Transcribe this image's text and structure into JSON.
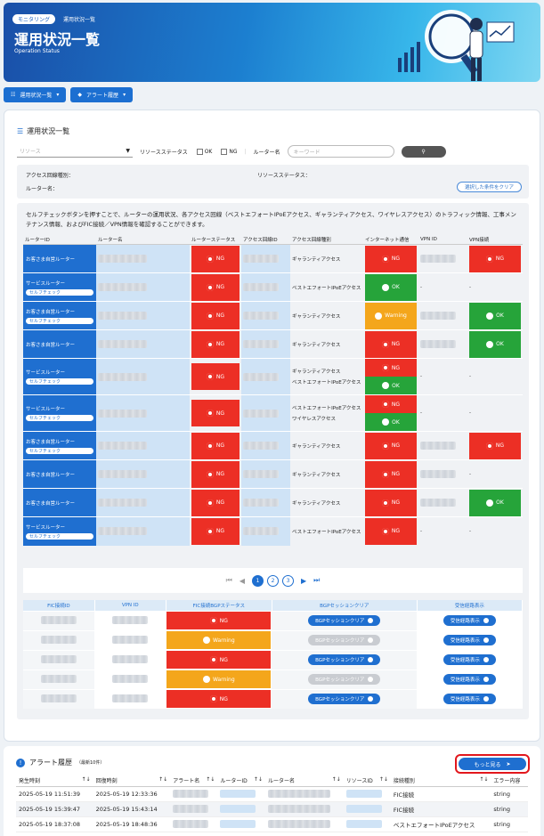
{
  "breadcrumb": [
    "モニタリング",
    "運用状況一覧"
  ],
  "page": {
    "title": "運用状況一覧",
    "subtitle": "Operation Status"
  },
  "nav": {
    "btn1": "運用状況一覧",
    "btn2": "アラート履歴"
  },
  "section": {
    "title": "運用状況一覧"
  },
  "filter": {
    "resource_placeholder": "リソース",
    "resource_status_label": "リソースステータス",
    "ok_label": "OK",
    "ng_label": "NG",
    "router_name_label": "ルーター名",
    "keyword_placeholder": "キーワード"
  },
  "conditions": {
    "access_type_label": "アクセス回線種別：",
    "router_name_label": "ルーター名：",
    "resource_status_label": "リソースステータス：",
    "clear_button": "選択した条件をクリア"
  },
  "description": "セルフチェックボタンを押すことで、ルーターの運用状況、各アクセス回線（ベストエフォートIPoEアクセス、ギャランティアクセス、ワイヤレスアクセス）のトラフィック情報、工事メンテナンス情報、およびFIC接続／VPN情報を確認することができます。",
  "table": {
    "headers": [
      "ルーターID",
      "ルーター名",
      "ルーターステータス",
      "アクセス回線ID",
      "アクセス回線種別",
      "インターネット通信",
      "VPN ID",
      "VPN接続"
    ],
    "self_check_label": "セルフチェック",
    "rows": [
      {
        "name": "お客さま自営ルーター",
        "self": false,
        "status": "NG",
        "lines": [
          {
            "type": "ギャランティアクセス",
            "inet": "NG"
          }
        ],
        "vpn": "NG",
        "vpnid": true
      },
      {
        "name": "サービスルーター",
        "self": true,
        "status": "NG",
        "lines": [
          {
            "type": "ベストエフォートIPoEアクセス",
            "inet": "OK"
          }
        ],
        "vpn": "-",
        "vpnid": false
      },
      {
        "name": "お客さま自営ルーター",
        "self": true,
        "status": "NG",
        "lines": [
          {
            "type": "ギャランティアクセス",
            "inet": "Warning"
          }
        ],
        "vpn": "OK",
        "vpnid": true
      },
      {
        "name": "お客さま自営ルーター",
        "self": false,
        "status": "NG",
        "lines": [
          {
            "type": "ギャランティアクセス",
            "inet": "NG"
          }
        ],
        "vpn": "OK",
        "vpnid": true
      },
      {
        "name": "サービスルーター",
        "self": true,
        "status": "NG",
        "lines": [
          {
            "type": "ギャランティアクセス",
            "inet": "NG"
          },
          {
            "type": "ベストエフォートIPoEアクセス",
            "inet": "OK"
          }
        ],
        "vpn": "-",
        "vpnid": false
      },
      {
        "name": "サービスルーター",
        "self": true,
        "status": "NG",
        "lines": [
          {
            "type": "ベストエフォートIPoEアクセス",
            "inet": "NG"
          },
          {
            "type": "ワイヤレスアクセス",
            "inet": "OK"
          }
        ],
        "vpn": "-",
        "vpnid": false
      },
      {
        "name": "お客さま自営ルーター",
        "self": true,
        "status": "NG",
        "lines": [
          {
            "type": "ギャランティアクセス",
            "inet": "NG"
          }
        ],
        "vpn": "NG",
        "vpnid": true
      },
      {
        "name": "お客さま自営ルーター",
        "self": false,
        "status": "NG",
        "lines": [
          {
            "type": "ギャランティアクセス",
            "inet": "NG"
          }
        ],
        "vpn": "-",
        "vpnid": true
      },
      {
        "name": "お客さま自営ルーター",
        "self": false,
        "status": "NG",
        "lines": [
          {
            "type": "ギャランティアクセス",
            "inet": "NG"
          }
        ],
        "vpn": "OK",
        "vpnid": true
      },
      {
        "name": "サービスルーター",
        "self": true,
        "status": "NG",
        "lines": [
          {
            "type": "ベストエフォートIPoEアクセス",
            "inet": "NG"
          }
        ],
        "vpn": "-",
        "vpnid": false
      }
    ]
  },
  "pagination": {
    "pages": [
      "1",
      "2",
      "3"
    ],
    "current": "1"
  },
  "fic": {
    "headers": [
      "FIC接続ID",
      "VPN ID",
      "FIC接続BGPステータス",
      "BGPセッションクリア",
      "受信経路表示"
    ],
    "bgp_label": "BGPセッションクリア",
    "route_label": "受信経路表示",
    "rows": [
      {
        "status": "NG",
        "bgp_enabled": true
      },
      {
        "status": "Warning",
        "bgp_enabled": false
      },
      {
        "status": "NG",
        "bgp_enabled": true
      },
      {
        "status": "Warning",
        "bgp_enabled": false
      },
      {
        "status": "NG",
        "bgp_enabled": true
      }
    ]
  },
  "alert": {
    "title": "アラート履歴",
    "note": "（最新10件）",
    "more": "もっと見る",
    "headers": [
      "発生時刻",
      "回復時刻",
      "アラート名",
      "ルーターID",
      "ルーター名",
      "リソースID",
      "接続種別",
      "エラー内容"
    ],
    "rows": [
      [
        "2025-05-19 11:51:39",
        "2025-05-19 12:33:36",
        "FIC接続",
        "string"
      ],
      [
        "2025-05-19 15:39:47",
        "2025-05-19 15:43:14",
        "FIC接続",
        "string"
      ],
      [
        "2025-05-19 18:37:08",
        "2025-05-19 18:48:36",
        "ベストエフォートIPoEアクセス",
        "string"
      ]
    ]
  },
  "colors": {
    "ng": "#ec2f25",
    "ok": "#26a43a",
    "warning": "#f4a61b",
    "primary": "#1f6fd0"
  }
}
